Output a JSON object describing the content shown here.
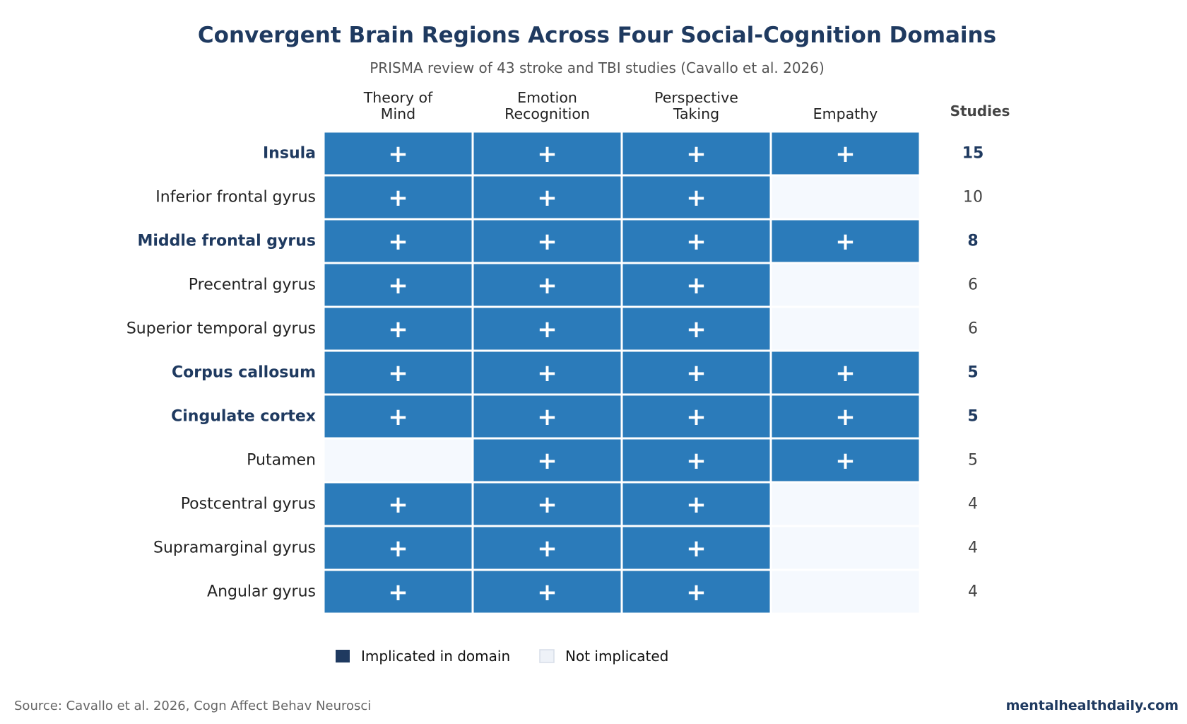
{
  "chart_data": {
    "type": "heatmap",
    "title": "Convergent Brain Regions Across Four Social-Cognition Domains",
    "subtitle": "PRISMA review of 43 stroke and TBI studies (Cavallo et al. 2026)",
    "columns": [
      {
        "lines": [
          "Theory of",
          "Mind"
        ]
      },
      {
        "lines": [
          "Emotion",
          "Recognition"
        ]
      },
      {
        "lines": [
          "Perspective",
          "Taking"
        ]
      },
      {
        "lines": [
          "",
          "Empathy"
        ]
      }
    ],
    "studies_header": "Studies",
    "cell_marker": "+",
    "rows": [
      {
        "region": "Insula",
        "cells": [
          1,
          1,
          1,
          1
        ],
        "studies": 15,
        "highlight": true
      },
      {
        "region": "Inferior frontal gyrus",
        "cells": [
          1,
          1,
          1,
          0
        ],
        "studies": 10,
        "highlight": false
      },
      {
        "region": "Middle frontal gyrus",
        "cells": [
          1,
          1,
          1,
          1
        ],
        "studies": 8,
        "highlight": true
      },
      {
        "region": "Precentral gyrus",
        "cells": [
          1,
          1,
          1,
          0
        ],
        "studies": 6,
        "highlight": false
      },
      {
        "region": "Superior temporal gyrus",
        "cells": [
          1,
          1,
          1,
          0
        ],
        "studies": 6,
        "highlight": false
      },
      {
        "region": "Corpus callosum",
        "cells": [
          1,
          1,
          1,
          1
        ],
        "studies": 5,
        "highlight": true
      },
      {
        "region": "Cingulate cortex",
        "cells": [
          1,
          1,
          1,
          1
        ],
        "studies": 5,
        "highlight": true
      },
      {
        "region": "Putamen",
        "cells": [
          0,
          1,
          1,
          1
        ],
        "studies": 5,
        "highlight": false
      },
      {
        "region": "Postcentral gyrus",
        "cells": [
          1,
          1,
          1,
          0
        ],
        "studies": 4,
        "highlight": false
      },
      {
        "region": "Supramarginal gyrus",
        "cells": [
          1,
          1,
          1,
          0
        ],
        "studies": 4,
        "highlight": false
      },
      {
        "region": "Angular gyrus",
        "cells": [
          1,
          1,
          1,
          0
        ],
        "studies": 4,
        "highlight": false
      }
    ],
    "legend": [
      {
        "label": "Implicated in domain",
        "color": "#1f3a60"
      },
      {
        "label": "Not implicated",
        "color": "#eef2f8"
      }
    ],
    "colors": {
      "implicated": "#2b7bba",
      "not_implicated": "#f5f9fe",
      "highlight_text": "#1f3a60"
    }
  },
  "footer": {
    "source": "Source: Cavallo et al. 2026, Cogn Affect Behav Neurosci",
    "brand": "mentalhealthdaily.com"
  }
}
